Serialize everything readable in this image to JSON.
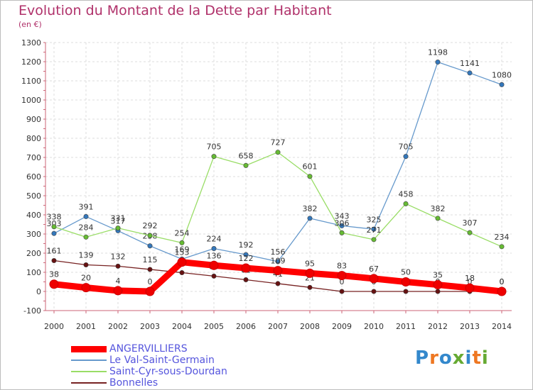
{
  "header": {
    "title": "Evolution du Montant de la Dette par Habitant",
    "unit": "(en €)"
  },
  "logo": {
    "text": "Proxiti"
  },
  "chart_data": {
    "type": "line",
    "x": [
      "2000",
      "2001",
      "2002",
      "2003",
      "2004",
      "2005",
      "2006",
      "2007",
      "2008",
      "2009",
      "2010",
      "2011",
      "2012",
      "2013",
      "2014"
    ],
    "ylim": [
      -100,
      1300
    ],
    "yticks": [
      -100,
      0,
      100,
      200,
      300,
      400,
      500,
      600,
      700,
      800,
      900,
      1000,
      1100,
      1200,
      1300
    ],
    "grid": true,
    "legend_position": "bottom-left",
    "series": [
      {
        "name": "ANGERVILLIERS",
        "color": "#ff0000",
        "values": [
          38,
          20,
          4,
          0,
          153,
          136,
          122,
          109,
          95,
          83,
          67,
          50,
          35,
          18,
          0
        ]
      },
      {
        "name": "Le Val-Saint-Germain",
        "color": "#6699cc",
        "marker": "#3377bb",
        "values": [
          303,
          391,
          317,
          238,
          169,
          224,
          192,
          156,
          382,
          343,
          325,
          705,
          1198,
          1141,
          1080
        ]
      },
      {
        "name": "Saint-Cyr-sous-Dourdan",
        "color": "#99dd66",
        "marker": "#66bb33",
        "values": [
          338,
          284,
          331,
          292,
          254,
          705,
          658,
          727,
          601,
          306,
          271,
          458,
          382,
          307,
          234
        ]
      },
      {
        "name": "Bonnelles",
        "color": "#772222",
        "marker": "#661111",
        "values": [
          161,
          139,
          132,
          115,
          98,
          80,
          61,
          41,
          21,
          0,
          0,
          0,
          0,
          0,
          0
        ]
      }
    ]
  }
}
